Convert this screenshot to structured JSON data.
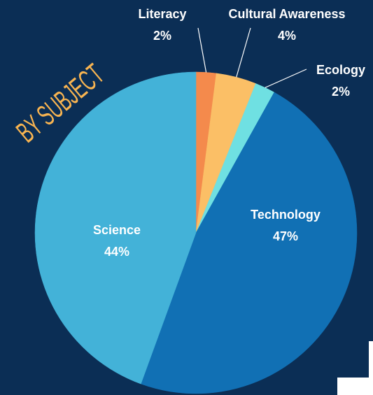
{
  "chart_data": {
    "type": "pie",
    "title": "BY SUBJECT",
    "categories": [
      "Literacy",
      "Cultural Awareness",
      "Ecology",
      "Technology",
      "Science"
    ],
    "values": [
      2,
      4,
      2,
      47,
      44
    ],
    "value_labels": [
      "2%",
      "4%",
      "2%",
      "47%",
      "44%"
    ],
    "colors": [
      "#f48a4c",
      "#fbbf66",
      "#6fe0e2",
      "#1170b4",
      "#43b2d8"
    ]
  }
}
